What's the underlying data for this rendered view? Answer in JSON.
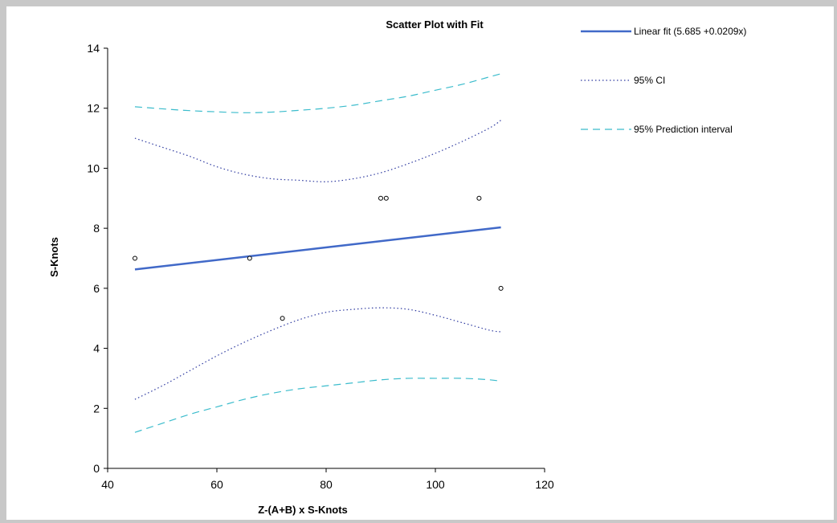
{
  "chart_data": {
    "type": "scatter",
    "title": "Scatter Plot with Fit",
    "xlabel": "Z-(A+B) x S-Knots",
    "ylabel": "S-Knots",
    "xlim": [
      40,
      120
    ],
    "ylim": [
      0,
      14
    ],
    "x_ticks": [
      40,
      60,
      80,
      100,
      120
    ],
    "y_ticks": [
      0,
      2,
      4,
      6,
      8,
      10,
      12,
      14
    ],
    "grid": false,
    "legend_position": "top-right",
    "points": [
      {
        "x": 45,
        "y": 7
      },
      {
        "x": 66,
        "y": 7
      },
      {
        "x": 72,
        "y": 5
      },
      {
        "x": 90,
        "y": 9
      },
      {
        "x": 91,
        "y": 9
      },
      {
        "x": 108,
        "y": 9
      },
      {
        "x": 112,
        "y": 6
      }
    ],
    "series": [
      {
        "name": "Linear fit (5.685  +0.0209x)",
        "style": "solid",
        "color": "#4169c8",
        "x": [
          45,
          112
        ],
        "y": [
          6.63,
          8.03
        ]
      },
      {
        "name": "95% CI",
        "style": "dotted",
        "color": "#2e3aa0",
        "upper": {
          "x": [
            45,
            50,
            55,
            60,
            65,
            70,
            75,
            80,
            85,
            90,
            95,
            100,
            105,
            110,
            112
          ],
          "y": [
            11.0,
            10.7,
            10.4,
            10.05,
            9.8,
            9.65,
            9.6,
            9.55,
            9.65,
            9.85,
            10.15,
            10.5,
            10.9,
            11.35,
            11.6
          ]
        },
        "lower": {
          "x": [
            45,
            50,
            55,
            60,
            65,
            70,
            75,
            80,
            85,
            90,
            95,
            100,
            105,
            110,
            112
          ],
          "y": [
            2.3,
            2.75,
            3.25,
            3.75,
            4.2,
            4.6,
            4.95,
            5.2,
            5.3,
            5.35,
            5.3,
            5.1,
            4.85,
            4.6,
            4.55
          ]
        }
      },
      {
        "name": "95% Prediction interval",
        "style": "dashed",
        "color": "#3bbccc",
        "upper": {
          "x": [
            45,
            50,
            55,
            60,
            65,
            70,
            75,
            80,
            85,
            90,
            95,
            100,
            105,
            110,
            112
          ],
          "y": [
            12.05,
            11.98,
            11.92,
            11.88,
            11.85,
            11.87,
            11.93,
            12.0,
            12.1,
            12.25,
            12.4,
            12.6,
            12.8,
            13.05,
            13.15
          ]
        },
        "lower": {
          "x": [
            45,
            50,
            55,
            60,
            65,
            70,
            75,
            80,
            85,
            90,
            95,
            100,
            105,
            110,
            112
          ],
          "y": [
            1.2,
            1.5,
            1.8,
            2.05,
            2.3,
            2.5,
            2.65,
            2.75,
            2.85,
            2.95,
            3.0,
            3.0,
            3.0,
            2.95,
            2.9
          ]
        }
      }
    ]
  }
}
